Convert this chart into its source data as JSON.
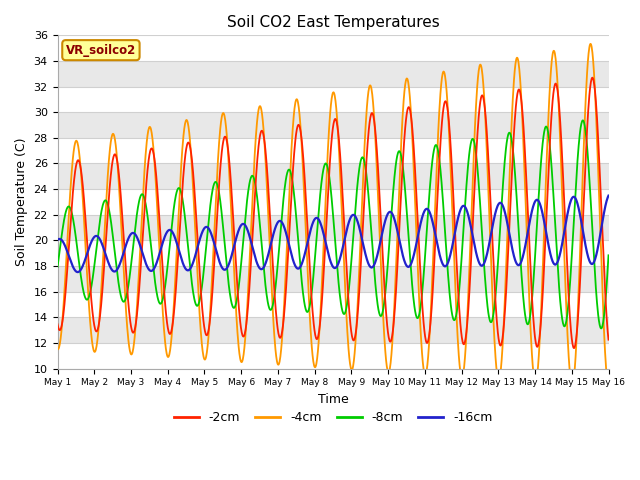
{
  "title": "Soil CO2 East Temperatures",
  "xlabel": "Time",
  "ylabel": "Soil Temperature (C)",
  "ylim": [
    10,
    36
  ],
  "xlim": [
    0,
    15
  ],
  "annotation": "VR_soilco2",
  "legend_labels": [
    "-2cm",
    "-4cm",
    "-8cm",
    "-16cm"
  ],
  "legend_colors": [
    "#ff2200",
    "#ff9900",
    "#00cc00",
    "#2222cc"
  ],
  "xtick_labels": [
    "May 1",
    "May 2",
    "May 3",
    "May 4",
    "May 5",
    "May 6",
    "May 7",
    "May 8",
    "May 9",
    "May 10",
    "May 11",
    "May 12",
    "May 13",
    "May 14",
    "May 15",
    "May 16"
  ],
  "ytick_vals": [
    10,
    12,
    14,
    16,
    18,
    20,
    22,
    24,
    26,
    28,
    30,
    32,
    34,
    36
  ],
  "background_color": "#ffffff"
}
